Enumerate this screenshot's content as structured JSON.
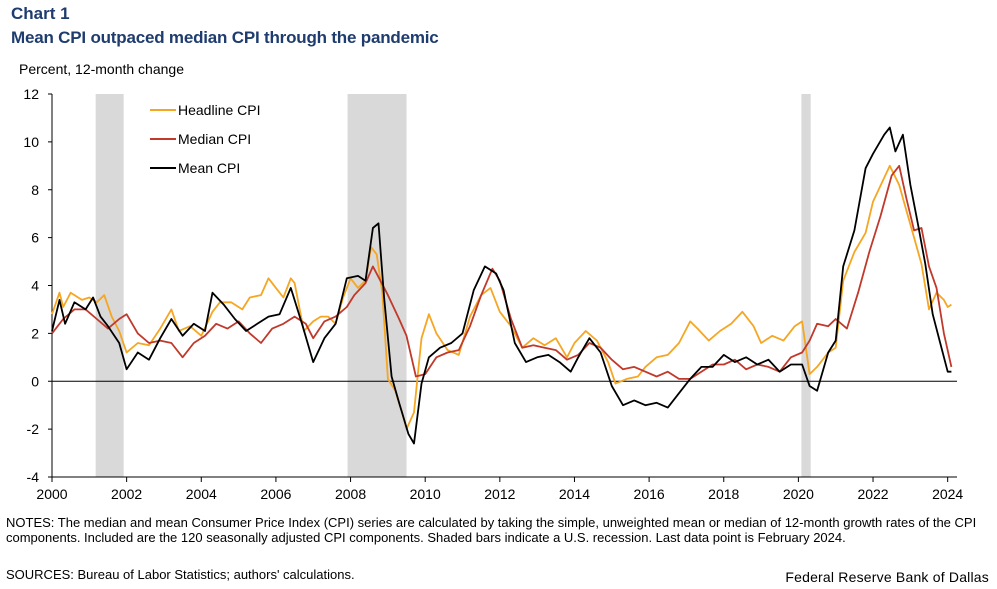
{
  "header": {
    "chart_label": "Chart 1",
    "title": "Mean CPI outpaced median CPI through the pandemic",
    "units": "Percent, 12-month change"
  },
  "footer": {
    "notes": "NOTES: The median and mean Consumer Price Index (CPI) series are calculated by taking the simple, unweighted mean or median of 12-month growth rates of the CPI components. Included are the 120 seasonally adjusted CPI components. Shaded bars indicate a U.S. recession. Last data point is February 2024.",
    "sources": "SOURCES: Bureau of Labor Statistics; authors' calculations.",
    "credit": "Federal Reserve Bank of Dallas"
  },
  "colors": {
    "headline": "#f5a623",
    "median": "#c0392b",
    "mean": "#000000",
    "recession": "#d9d9d9",
    "axis": "#000000"
  },
  "chart_data": {
    "type": "line",
    "title": "Mean CPI outpaced median CPI through the pandemic",
    "ylabel": "Percent, 12-month change",
    "xlabel": "",
    "xlim": [
      2000,
      2024.25
    ],
    "ylim": [
      -4,
      12
    ],
    "y_ticks": [
      -4,
      -2,
      0,
      2,
      4,
      6,
      8,
      10,
      12
    ],
    "x_ticks": [
      2000,
      2002,
      2004,
      2006,
      2008,
      2010,
      2012,
      2014,
      2016,
      2018,
      2020,
      2022,
      2024
    ],
    "legend_position": "top-left",
    "recessions": [
      [
        2001.17,
        2001.92
      ],
      [
        2007.92,
        2009.5
      ],
      [
        2020.08,
        2020.33
      ]
    ],
    "series": [
      {
        "name": "Headline CPI",
        "color": "#f5a623",
        "points": [
          [
            2000.0,
            2.8
          ],
          [
            2000.2,
            3.7
          ],
          [
            2000.3,
            3.1
          ],
          [
            2000.5,
            3.7
          ],
          [
            2000.8,
            3.4
          ],
          [
            2001.0,
            3.5
          ],
          [
            2001.2,
            3.3
          ],
          [
            2001.4,
            3.6
          ],
          [
            2001.6,
            2.7
          ],
          [
            2001.8,
            2.1
          ],
          [
            2002.0,
            1.2
          ],
          [
            2002.3,
            1.6
          ],
          [
            2002.6,
            1.5
          ],
          [
            2002.9,
            2.2
          ],
          [
            2003.2,
            3.0
          ],
          [
            2003.4,
            2.1
          ],
          [
            2003.7,
            2.3
          ],
          [
            2004.0,
            1.9
          ],
          [
            2004.3,
            2.9
          ],
          [
            2004.5,
            3.3
          ],
          [
            2004.8,
            3.3
          ],
          [
            2005.1,
            3.0
          ],
          [
            2005.3,
            3.5
          ],
          [
            2005.6,
            3.6
          ],
          [
            2005.8,
            4.3
          ],
          [
            2006.0,
            3.9
          ],
          [
            2006.2,
            3.5
          ],
          [
            2006.4,
            4.3
          ],
          [
            2006.5,
            4.1
          ],
          [
            2006.75,
            2.1
          ],
          [
            2007.0,
            2.5
          ],
          [
            2007.2,
            2.7
          ],
          [
            2007.4,
            2.7
          ],
          [
            2007.6,
            2.4
          ],
          [
            2007.8,
            3.5
          ],
          [
            2008.0,
            4.3
          ],
          [
            2008.2,
            3.9
          ],
          [
            2008.4,
            4.2
          ],
          [
            2008.55,
            5.6
          ],
          [
            2008.7,
            5.3
          ],
          [
            2008.85,
            3.7
          ],
          [
            2009.0,
            0.1
          ],
          [
            2009.2,
            -0.4
          ],
          [
            2009.4,
            -1.4
          ],
          [
            2009.5,
            -2.0
          ],
          [
            2009.7,
            -1.3
          ],
          [
            2009.9,
            1.8
          ],
          [
            2010.1,
            2.8
          ],
          [
            2010.3,
            2.0
          ],
          [
            2010.6,
            1.3
          ],
          [
            2010.9,
            1.1
          ],
          [
            2011.2,
            2.7
          ],
          [
            2011.5,
            3.6
          ],
          [
            2011.75,
            3.9
          ],
          [
            2012.0,
            2.9
          ],
          [
            2012.3,
            2.3
          ],
          [
            2012.6,
            1.4
          ],
          [
            2012.9,
            1.8
          ],
          [
            2013.2,
            1.5
          ],
          [
            2013.5,
            1.8
          ],
          [
            2013.8,
            1.0
          ],
          [
            2014.0,
            1.6
          ],
          [
            2014.3,
            2.1
          ],
          [
            2014.6,
            1.7
          ],
          [
            2014.9,
            0.8
          ],
          [
            2015.1,
            -0.1
          ],
          [
            2015.4,
            0.1
          ],
          [
            2015.7,
            0.2
          ],
          [
            2015.9,
            0.6
          ],
          [
            2016.2,
            1.0
          ],
          [
            2016.5,
            1.1
          ],
          [
            2016.8,
            1.6
          ],
          [
            2017.1,
            2.5
          ],
          [
            2017.3,
            2.2
          ],
          [
            2017.6,
            1.7
          ],
          [
            2017.9,
            2.1
          ],
          [
            2018.2,
            2.4
          ],
          [
            2018.5,
            2.9
          ],
          [
            2018.8,
            2.3
          ],
          [
            2019.0,
            1.6
          ],
          [
            2019.3,
            1.9
          ],
          [
            2019.6,
            1.7
          ],
          [
            2019.9,
            2.3
          ],
          [
            2020.1,
            2.5
          ],
          [
            2020.3,
            0.3
          ],
          [
            2020.5,
            0.6
          ],
          [
            2020.8,
            1.2
          ],
          [
            2021.0,
            1.4
          ],
          [
            2021.2,
            4.2
          ],
          [
            2021.5,
            5.4
          ],
          [
            2021.8,
            6.2
          ],
          [
            2022.0,
            7.5
          ],
          [
            2022.3,
            8.5
          ],
          [
            2022.45,
            9.0
          ],
          [
            2022.7,
            8.2
          ],
          [
            2022.9,
            7.1
          ],
          [
            2023.1,
            6.0
          ],
          [
            2023.3,
            4.9
          ],
          [
            2023.5,
            3.0
          ],
          [
            2023.7,
            3.7
          ],
          [
            2023.9,
            3.4
          ],
          [
            2024.0,
            3.1
          ],
          [
            2024.1,
            3.2
          ]
        ]
      },
      {
        "name": "Median CPI",
        "color": "#c0392b",
        "points": [
          [
            2000.0,
            2.0
          ],
          [
            2000.3,
            2.6
          ],
          [
            2000.6,
            3.0
          ],
          [
            2000.9,
            3.0
          ],
          [
            2001.2,
            2.6
          ],
          [
            2001.5,
            2.2
          ],
          [
            2001.8,
            2.6
          ],
          [
            2002.0,
            2.8
          ],
          [
            2002.3,
            2.0
          ],
          [
            2002.6,
            1.6
          ],
          [
            2002.9,
            1.7
          ],
          [
            2003.2,
            1.6
          ],
          [
            2003.5,
            1.0
          ],
          [
            2003.8,
            1.6
          ],
          [
            2004.1,
            1.9
          ],
          [
            2004.4,
            2.4
          ],
          [
            2004.7,
            2.2
          ],
          [
            2005.0,
            2.5
          ],
          [
            2005.3,
            2.0
          ],
          [
            2005.6,
            1.6
          ],
          [
            2005.9,
            2.2
          ],
          [
            2006.2,
            2.4
          ],
          [
            2006.5,
            2.7
          ],
          [
            2006.8,
            2.4
          ],
          [
            2007.0,
            1.8
          ],
          [
            2007.3,
            2.5
          ],
          [
            2007.6,
            2.7
          ],
          [
            2007.9,
            3.1
          ],
          [
            2008.1,
            3.6
          ],
          [
            2008.4,
            4.1
          ],
          [
            2008.6,
            4.8
          ],
          [
            2008.8,
            4.2
          ],
          [
            2009.0,
            3.6
          ],
          [
            2009.3,
            2.6
          ],
          [
            2009.5,
            1.9
          ],
          [
            2009.75,
            0.2
          ],
          [
            2010.0,
            0.3
          ],
          [
            2010.3,
            1.0
          ],
          [
            2010.6,
            1.2
          ],
          [
            2010.9,
            1.3
          ],
          [
            2011.2,
            2.3
          ],
          [
            2011.5,
            3.6
          ],
          [
            2011.8,
            4.7
          ],
          [
            2012.0,
            4.2
          ],
          [
            2012.3,
            2.6
          ],
          [
            2012.6,
            1.4
          ],
          [
            2012.9,
            1.5
          ],
          [
            2013.2,
            1.4
          ],
          [
            2013.5,
            1.3
          ],
          [
            2013.8,
            0.9
          ],
          [
            2014.1,
            1.1
          ],
          [
            2014.4,
            1.6
          ],
          [
            2014.7,
            1.4
          ],
          [
            2015.0,
            0.9
          ],
          [
            2015.3,
            0.5
          ],
          [
            2015.6,
            0.6
          ],
          [
            2015.9,
            0.4
          ],
          [
            2016.2,
            0.2
          ],
          [
            2016.5,
            0.4
          ],
          [
            2016.8,
            0.1
          ],
          [
            2017.1,
            0.1
          ],
          [
            2017.4,
            0.4
          ],
          [
            2017.7,
            0.7
          ],
          [
            2018.0,
            0.7
          ],
          [
            2018.3,
            0.9
          ],
          [
            2018.6,
            0.5
          ],
          [
            2018.9,
            0.7
          ],
          [
            2019.2,
            0.6
          ],
          [
            2019.5,
            0.4
          ],
          [
            2019.8,
            1.0
          ],
          [
            2020.1,
            1.2
          ],
          [
            2020.3,
            1.7
          ],
          [
            2020.5,
            2.4
          ],
          [
            2020.8,
            2.3
          ],
          [
            2021.0,
            2.6
          ],
          [
            2021.3,
            2.2
          ],
          [
            2021.6,
            3.7
          ],
          [
            2021.9,
            5.4
          ],
          [
            2022.2,
            6.9
          ],
          [
            2022.5,
            8.6
          ],
          [
            2022.7,
            9.0
          ],
          [
            2022.9,
            7.6
          ],
          [
            2023.1,
            6.3
          ],
          [
            2023.3,
            6.4
          ],
          [
            2023.5,
            4.8
          ],
          [
            2023.7,
            3.9
          ],
          [
            2023.9,
            2.0
          ],
          [
            2024.1,
            0.6
          ]
        ]
      },
      {
        "name": "Mean CPI",
        "color": "#000000",
        "points": [
          [
            2000.0,
            2.1
          ],
          [
            2000.2,
            3.4
          ],
          [
            2000.35,
            2.4
          ],
          [
            2000.6,
            3.3
          ],
          [
            2000.9,
            3.0
          ],
          [
            2001.1,
            3.5
          ],
          [
            2001.3,
            2.7
          ],
          [
            2001.5,
            2.3
          ],
          [
            2001.8,
            1.6
          ],
          [
            2002.0,
            0.5
          ],
          [
            2002.3,
            1.2
          ],
          [
            2002.6,
            0.9
          ],
          [
            2002.9,
            1.8
          ],
          [
            2003.2,
            2.6
          ],
          [
            2003.5,
            1.9
          ],
          [
            2003.8,
            2.4
          ],
          [
            2004.1,
            2.1
          ],
          [
            2004.3,
            3.7
          ],
          [
            2004.6,
            3.2
          ],
          [
            2004.9,
            2.6
          ],
          [
            2005.2,
            2.1
          ],
          [
            2005.5,
            2.4
          ],
          [
            2005.8,
            2.7
          ],
          [
            2006.1,
            2.8
          ],
          [
            2006.4,
            3.9
          ],
          [
            2006.7,
            2.4
          ],
          [
            2007.0,
            0.8
          ],
          [
            2007.3,
            1.8
          ],
          [
            2007.6,
            2.4
          ],
          [
            2007.9,
            4.3
          ],
          [
            2008.2,
            4.4
          ],
          [
            2008.4,
            4.2
          ],
          [
            2008.6,
            6.4
          ],
          [
            2008.75,
            6.6
          ],
          [
            2008.9,
            3.5
          ],
          [
            2009.1,
            0.2
          ],
          [
            2009.3,
            -0.9
          ],
          [
            2009.55,
            -2.2
          ],
          [
            2009.7,
            -2.6
          ],
          [
            2009.9,
            -0.1
          ],
          [
            2010.1,
            1.0
          ],
          [
            2010.4,
            1.4
          ],
          [
            2010.7,
            1.6
          ],
          [
            2011.0,
            2.0
          ],
          [
            2011.3,
            3.8
          ],
          [
            2011.6,
            4.8
          ],
          [
            2011.9,
            4.5
          ],
          [
            2012.1,
            3.8
          ],
          [
            2012.4,
            1.6
          ],
          [
            2012.7,
            0.8
          ],
          [
            2013.0,
            1.0
          ],
          [
            2013.3,
            1.1
          ],
          [
            2013.6,
            0.8
          ],
          [
            2013.9,
            0.4
          ],
          [
            2014.1,
            1.0
          ],
          [
            2014.4,
            1.8
          ],
          [
            2014.7,
            1.2
          ],
          [
            2015.0,
            -0.2
          ],
          [
            2015.3,
            -1.0
          ],
          [
            2015.6,
            -0.8
          ],
          [
            2015.9,
            -1.0
          ],
          [
            2016.2,
            -0.9
          ],
          [
            2016.5,
            -1.1
          ],
          [
            2016.8,
            -0.5
          ],
          [
            2017.1,
            0.1
          ],
          [
            2017.4,
            0.6
          ],
          [
            2017.7,
            0.6
          ],
          [
            2018.0,
            1.1
          ],
          [
            2018.3,
            0.8
          ],
          [
            2018.6,
            1.0
          ],
          [
            2018.9,
            0.7
          ],
          [
            2019.2,
            0.9
          ],
          [
            2019.5,
            0.4
          ],
          [
            2019.8,
            0.7
          ],
          [
            2020.1,
            0.7
          ],
          [
            2020.3,
            -0.2
          ],
          [
            2020.5,
            -0.4
          ],
          [
            2020.8,
            1.2
          ],
          [
            2021.0,
            1.7
          ],
          [
            2021.2,
            4.8
          ],
          [
            2021.5,
            6.3
          ],
          [
            2021.8,
            8.9
          ],
          [
            2022.0,
            9.5
          ],
          [
            2022.3,
            10.3
          ],
          [
            2022.45,
            10.6
          ],
          [
            2022.6,
            9.6
          ],
          [
            2022.8,
            10.3
          ],
          [
            2023.0,
            8.2
          ],
          [
            2023.2,
            6.6
          ],
          [
            2023.4,
            4.9
          ],
          [
            2023.6,
            2.8
          ],
          [
            2023.8,
            1.6
          ],
          [
            2024.0,
            0.4
          ],
          [
            2024.1,
            0.4
          ]
        ]
      }
    ]
  }
}
